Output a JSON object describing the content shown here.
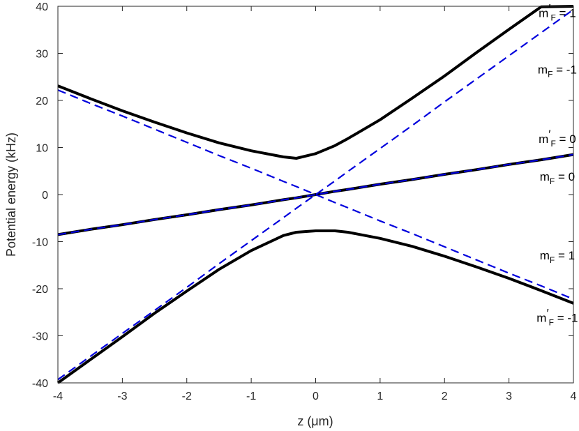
{
  "chart_data": {
    "type": "line",
    "xlabel": "z (μm)",
    "ylabel": "Potential energy (kHz)",
    "xlim": [
      -4,
      4
    ],
    "ylim": [
      -40,
      40
    ],
    "xticks": [
      -4,
      -3,
      -2,
      -1,
      0,
      1,
      2,
      3,
      4
    ],
    "yticks": [
      -40,
      -30,
      -20,
      -10,
      0,
      10,
      20,
      30,
      40
    ],
    "x": [
      -4,
      -3.5,
      -3,
      -2.5,
      -2,
      -1.5,
      -1,
      -0.5,
      -0.3,
      0,
      0.3,
      0.5,
      1,
      1.5,
      2,
      2.5,
      3,
      3.5,
      4
    ],
    "series": [
      {
        "style": "solid",
        "color": "#000000",
        "values": [
          23.1,
          20.4,
          17.8,
          15.4,
          13.1,
          11.0,
          9.3,
          8.0,
          7.7,
          8.7,
          10.4,
          11.9,
          15.9,
          20.5,
          25.2,
          30.2,
          35.1,
          39.9,
          40
        ]
      },
      {
        "style": "solid",
        "color": "#000000",
        "values": [
          -8.5,
          -7.4,
          -6.4,
          -5.3,
          -4.3,
          -3.2,
          -2.2,
          -1.1,
          -0.7,
          0,
          0.7,
          1.1,
          2.2,
          3.2,
          4.3,
          5.3,
          6.4,
          7.4,
          8.5
        ]
      },
      {
        "style": "solid",
        "color": "#000000",
        "values": [
          -40,
          -35.1,
          -30.2,
          -25.2,
          -20.5,
          -15.9,
          -11.9,
          -8.7,
          -8.0,
          -7.7,
          -7.7,
          -8.0,
          -9.3,
          -11.0,
          -13.1,
          -15.4,
          -17.8,
          -20.4,
          -23.1
        ]
      },
      {
        "style": "dashed",
        "color": "#0000dd",
        "values": [
          -39.3,
          -34.4,
          -29.5,
          -24.6,
          -19.7,
          -14.7,
          -9.8,
          -4.9,
          -2.9,
          0,
          2.9,
          4.9,
          9.8,
          14.7,
          19.7,
          24.6,
          29.5,
          34.4,
          39.3
        ]
      },
      {
        "style": "dashed",
        "color": "#0000dd",
        "values": [
          22.2,
          19.4,
          16.7,
          13.9,
          11.1,
          8.3,
          5.6,
          2.8,
          1.7,
          0,
          -1.7,
          -2.8,
          -5.6,
          -8.3,
          -11.1,
          -13.9,
          -16.7,
          -19.4,
          -22.2
        ]
      },
      {
        "style": "dashed",
        "color": "#0000dd",
        "values": [
          -8.5,
          -7.4,
          -6.4,
          -5.3,
          -4.3,
          -3.2,
          -2.2,
          -1.1,
          -0.7,
          0,
          0.7,
          1.1,
          2.2,
          3.2,
          4.3,
          5.3,
          6.4,
          7.4,
          8.5
        ]
      }
    ],
    "annotations": [
      {
        "pre": "m",
        "prime": "′",
        "sub": "F",
        "post": " = 1",
        "x": 3.75,
        "y": 37.7
      },
      {
        "pre": "m",
        "prime": "",
        "sub": "F",
        "post": " = -1",
        "x": 3.75,
        "y": 25.7
      },
      {
        "pre": "m",
        "prime": "′",
        "sub": "F",
        "post": " = 0",
        "x": 3.75,
        "y": 11.0
      },
      {
        "pre": "m",
        "prime": "",
        "sub": "F",
        "post": " = 0",
        "x": 3.75,
        "y": 3.0
      },
      {
        "pre": "m",
        "prime": "",
        "sub": "F",
        "post": " = 1",
        "x": 3.75,
        "y": -13.8
      },
      {
        "pre": "m",
        "prime": "′",
        "sub": "F",
        "post": " = -1",
        "x": 3.75,
        "y": -27.0
      }
    ]
  }
}
